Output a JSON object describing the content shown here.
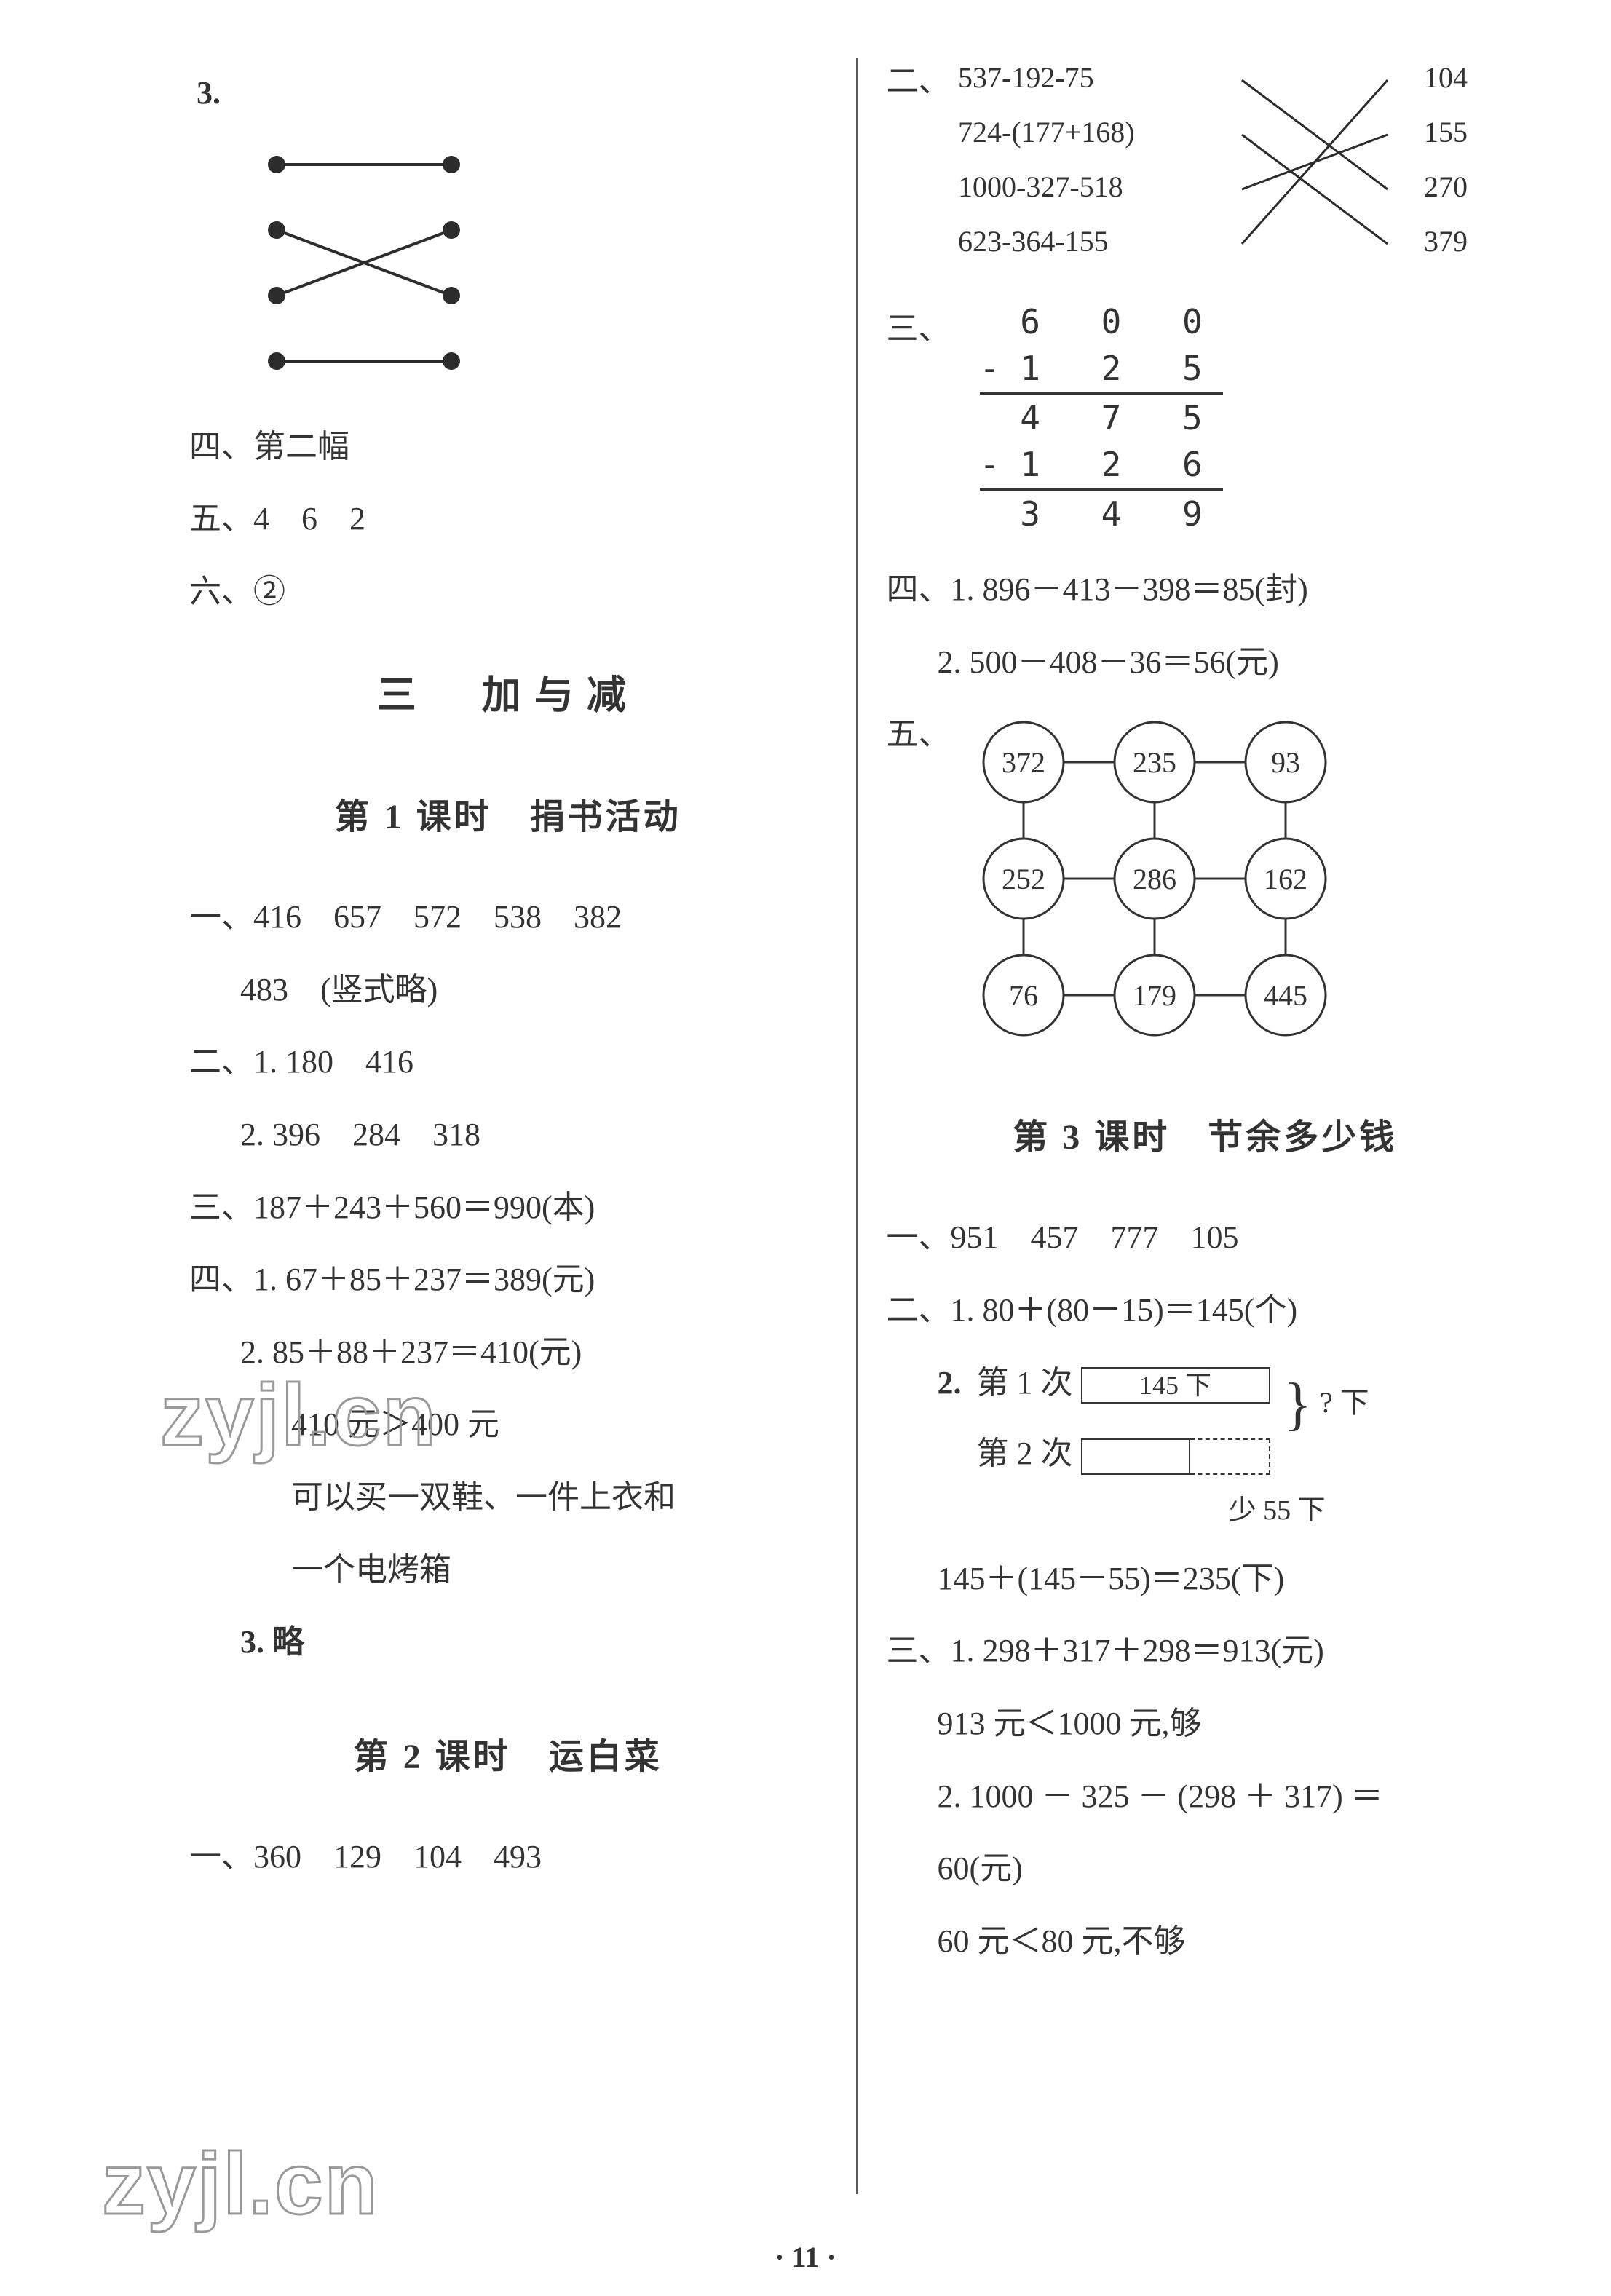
{
  "page_number": "· 11 ·",
  "watermark": "zyjl.cn",
  "left": {
    "q3_label": "3.",
    "match1": {
      "pairs": [
        [
          0,
          0
        ],
        [
          1,
          2
        ],
        [
          2,
          1
        ],
        [
          3,
          3
        ]
      ],
      "dot_color": "#2c2c2c",
      "line_color": "#2c2c2c"
    },
    "line_si": "四、第二幅",
    "line_wu": "五、4　6　2",
    "line_liu": "六、②",
    "section_title": "三　加与减",
    "lesson1_title": "第 1 课时　捐书活动",
    "l1_yi_a": "一、416　657　572　538　382",
    "l1_yi_b": "483　(竖式略)",
    "l1_er_1": "二、1. 180　416",
    "l1_er_2": "2. 396　284　318",
    "l1_san": "三、187＋243＋560＝990(本)",
    "l1_si_1": "四、1. 67＋85＋237＝389(元)",
    "l1_si_2": "2. 85＋88＋237＝410(元)",
    "l1_si_2b": "410 元＞400 元",
    "l1_si_2c": "可以买一双鞋、一件上衣和",
    "l1_si_2d": "一个电烤箱",
    "l1_si_3": "3. 略",
    "lesson2_title": "第 2 课时　运白菜",
    "l2_yi": "一、360　129　104　493"
  },
  "right": {
    "er_label": "二、",
    "match2": {
      "left_items": [
        "537-192-75",
        "724-(177+168)",
        "1000-327-518",
        "623-364-155"
      ],
      "right_items": [
        "104",
        "155",
        "270",
        "379"
      ],
      "pairs": [
        [
          0,
          2
        ],
        [
          1,
          3
        ],
        [
          2,
          1
        ],
        [
          3,
          0
        ]
      ],
      "line_color": "#2c2c2c"
    },
    "san_label": "三、",
    "vsub": {
      "l1": " 6 0 0",
      "l2": "-1 2 5",
      "l3": " 4 7 5",
      "l4": "-1 2 6",
      "l5": " 3 4 9"
    },
    "si_1": "四、1. 896－413－398＝85(封)",
    "si_2": "2. 500－408－36＝56(元)",
    "wu_label": "五、",
    "grid": {
      "values": [
        [
          "372",
          "235",
          "93"
        ],
        [
          "252",
          "286",
          "162"
        ],
        [
          "76",
          "179",
          "445"
        ]
      ],
      "circle_stroke": "#333333",
      "line_color": "#333333"
    },
    "lesson3_title": "第 3 课时　节余多少钱",
    "l3_yi": "一、951　457　777　105",
    "l3_er_1": "二、1. 80＋(80－15)＝145(个)",
    "l3_er_2_label": "2.",
    "bar": {
      "row1_label": "第 1 次",
      "row1_val": "145 下",
      "row2_label": "第 2 次",
      "q_label": "? 下",
      "less_label": "少 55 下"
    },
    "l3_er_2_res": "145＋(145－55)＝235(下)",
    "l3_san_1": "三、1. 298＋317＋298＝913(元)",
    "l3_san_1b": "913 元＜1000 元,够",
    "l3_san_2": "2. 1000 － 325 － (298 ＋ 317) ＝",
    "l3_san_2b": "60(元)",
    "l3_san_2c": "60 元＜80 元,不够"
  }
}
